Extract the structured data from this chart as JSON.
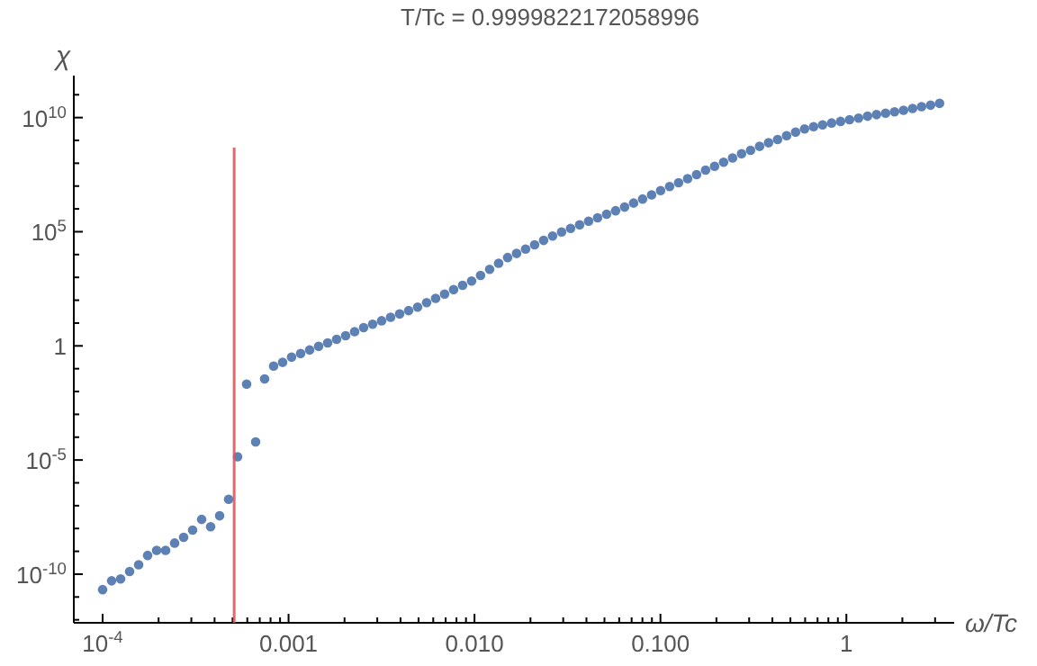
{
  "chart_data": {
    "type": "scatter",
    "title": "T/Tc = 0.9999822172058996",
    "xlabel": "ω/Tc",
    "ylabel": "χ",
    "log": "xy",
    "grid": false,
    "marker": "circle",
    "xlim": [
      7e-05,
      3.8
    ],
    "ylim": [
      7.4e-13,
      690000000000.0
    ],
    "xticks": [
      {
        "value": 0.0001,
        "label": "10$^{-4}$"
      },
      {
        "value": 0.0002,
        "label": null
      },
      {
        "value": 0.0003,
        "label": null
      },
      {
        "value": 0.0004,
        "label": null
      },
      {
        "value": 0.0005,
        "label": null
      },
      {
        "value": 0.0006,
        "label": null
      },
      {
        "value": 0.0007,
        "label": null
      },
      {
        "value": 0.0008,
        "label": null
      },
      {
        "value": 0.0009,
        "label": null
      },
      0.001,
      {
        "value": 0.002,
        "label": null
      },
      {
        "value": 0.003,
        "label": null
      },
      {
        "value": 0.004,
        "label": null
      },
      {
        "value": 0.005,
        "label": null
      },
      {
        "value": 0.006,
        "label": null
      },
      {
        "value": 0.007,
        "label": null
      },
      {
        "value": 0.008,
        "label": null
      },
      {
        "value": 0.009,
        "label": null
      },
      {
        "value": 0.01,
        "label": "0.010"
      },
      {
        "value": 0.02,
        "label": null
      },
      {
        "value": 0.03,
        "label": null
      },
      {
        "value": 0.04,
        "label": null
      },
      {
        "value": 0.05,
        "label": null
      },
      {
        "value": 0.06,
        "label": null
      },
      {
        "value": 0.07,
        "label": null
      },
      {
        "value": 0.08,
        "label": null
      },
      {
        "value": 0.09,
        "label": null
      },
      {
        "value": 0.1,
        "label": "0.100"
      },
      {
        "value": 0.2,
        "label": null
      },
      {
        "value": 0.3,
        "label": null
      },
      {
        "value": 0.4,
        "label": null
      },
      {
        "value": 0.5,
        "label": null
      },
      {
        "value": 0.6,
        "label": null
      },
      {
        "value": 0.7,
        "label": null
      },
      {
        "value": 0.8,
        "label": null
      },
      {
        "value": 0.9,
        "label": null
      },
      1,
      {
        "value": 2,
        "label": null
      },
      {
        "value": 3,
        "label": null
      }
    ],
    "yticks": [
      {
        "value": 1e-12,
        "label": null
      },
      {
        "value": 1e-11,
        "label": null
      },
      {
        "value": 1e-10,
        "label": "10$^{-10}$"
      },
      {
        "value": 1e-09,
        "label": null
      },
      {
        "value": 1e-08,
        "label": null
      },
      {
        "value": 1e-07,
        "label": null
      },
      {
        "value": 1e-06,
        "label": null
      },
      {
        "value": 1e-05,
        "label": "10$^{-5}$"
      },
      {
        "value": 0.0001,
        "label": null
      },
      {
        "value": 0.001,
        "label": null
      },
      {
        "value": 0.01,
        "label": null
      },
      {
        "value": 0.1,
        "label": null
      },
      1,
      {
        "value": 10,
        "label": null
      },
      {
        "value": 100,
        "label": null
      },
      {
        "value": 1000,
        "label": null
      },
      {
        "value": 10000,
        "label": null
      },
      {
        "value": 100000,
        "label": "10$^{5}$"
      },
      {
        "value": 1000000.0,
        "label": null
      },
      {
        "value": 10000000.0,
        "label": null
      },
      {
        "value": 100000000.0,
        "label": null
      },
      {
        "value": 1000000000.0,
        "label": null
      },
      {
        "value": 10000000000.0,
        "label": "10$^{10}$"
      },
      {
        "value": 100000000000.0,
        "label": null
      }
    ],
    "series": [
      {
        "color": "#5e81b5",
        "x": [
          0.0001,
          0.0001118,
          0.000125,
          0.0001397,
          0.0001562,
          0.0001746,
          0.0001952,
          0.0002182,
          0.0002439,
          0.0002727,
          0.0003048,
          0.0003408,
          0.0003809,
          0.0004258,
          0.000476,
          0.0005321,
          0.0005949,
          0.000665,
          0.0007434,
          0.000831,
          0.000929,
          0.001038,
          0.001161,
          0.001298,
          0.001451,
          0.001622,
          0.001813,
          0.002027,
          0.002266,
          0.002533,
          0.002831,
          0.003165,
          0.003538,
          0.003956,
          0.004422,
          0.004943,
          0.005526,
          0.006178,
          0.006906,
          0.00772,
          0.00863,
          0.009647,
          0.01078,
          0.01206,
          0.01348,
          0.01507,
          0.01684,
          0.01883,
          0.02105,
          0.02353,
          0.0263,
          0.0294,
          0.03287,
          0.03675,
          0.04108,
          0.04592,
          0.05134,
          0.05739,
          0.06416,
          0.07172,
          0.08017,
          0.08962,
          0.1002,
          0.112,
          0.1252,
          0.14,
          0.1565,
          0.1749,
          0.1955,
          0.2186,
          0.2443,
          0.2731,
          0.3053,
          0.3413,
          0.3815,
          0.4266,
          0.4769,
          0.5331,
          0.5959,
          0.6662,
          0.7447,
          0.8325,
          0.9307,
          1.04,
          1.163,
          1.3,
          1.453,
          1.625,
          1.816,
          2.03,
          2.27,
          2.537,
          2.837,
          3.171
        ],
        "values": [
          2.1e-11,
          5.1e-11,
          6.2e-11,
          1.3e-10,
          2.6e-10,
          6.6e-10,
          1.1e-09,
          1.1e-09,
          2.3e-09,
          4.1e-09,
          8.5e-09,
          2.5e-08,
          1.2e-08,
          3.6e-08,
          1.9e-07,
          1.4e-05,
          0.021,
          6.2e-05,
          0.036,
          0.13,
          0.19,
          0.32,
          0.46,
          0.66,
          0.95,
          1.35,
          1.95,
          2.8,
          4.2,
          6.3,
          8.9,
          12.6,
          17.8,
          25,
          35,
          50,
          78,
          120,
          186,
          290,
          450,
          690,
          1230,
          2240,
          4170,
          7400,
          11200,
          17400,
          26900,
          41700,
          64600,
          98000,
          140000.0,
          200000.0,
          290000.0,
          410000.0,
          590000.0,
          830000.0,
          1200000.0,
          1800000.0,
          2700000.0,
          4100000.0,
          6300000.0,
          9500000.0,
          14000000.0,
          21000000.0,
          32000000.0,
          50000000.0,
          74000000.0,
          110000000.0,
          170000000.0,
          260000000.0,
          370000000.0,
          550000000.0,
          790000000.0,
          1100000000.0,
          1600000000.0,
          2300000000.0,
          3200000000.0,
          4000000000.0,
          4800000000.0,
          5800000000.0,
          6800000000.0,
          8100000000.0,
          9500000000.0,
          11500000000.0,
          13500000000.0,
          15500000000.0,
          18000000000.0,
          21000000000.0,
          25000000000.0,
          30000000000.0,
          35000000000.0,
          42000000000.0
        ]
      },
      {
        "type": "line",
        "marker": "none",
        "color": "#e0575b",
        "x": [
          0.00051,
          0.00051
        ],
        "values": [
          7.4e-13,
          480000000.0
        ]
      }
    ]
  }
}
